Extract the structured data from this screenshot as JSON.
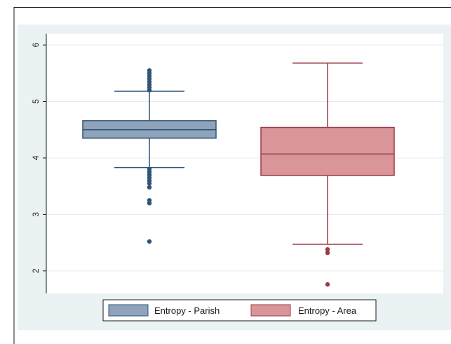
{
  "chart_data": {
    "type": "box",
    "title": "",
    "xlabel": "",
    "ylabel": "",
    "ylim": [
      1.6,
      6.2
    ],
    "yticks": [
      2,
      3,
      4,
      5,
      6
    ],
    "grid": true,
    "legend_position": "bottom",
    "series": [
      {
        "name": "Entropy - Parish",
        "color": "#8fa3bb",
        "edge_color": "#2e5478",
        "whisker_low": 3.83,
        "q1": 4.35,
        "median": 4.5,
        "q3": 4.66,
        "whisker_high": 5.18,
        "outliers": [
          5.2,
          5.25,
          5.3,
          5.35,
          5.4,
          5.45,
          5.5,
          5.55,
          3.8,
          3.75,
          3.7,
          3.65,
          3.6,
          3.55,
          3.48,
          3.25,
          3.2,
          2.52
        ]
      },
      {
        "name": "Entropy - Area",
        "color": "#d9959a",
        "edge_color": "#9e3a46",
        "whisker_low": 2.47,
        "q1": 3.69,
        "median": 4.07,
        "q3": 4.54,
        "whisker_high": 5.68,
        "outliers": [
          2.38,
          2.32,
          1.76
        ]
      }
    ]
  }
}
